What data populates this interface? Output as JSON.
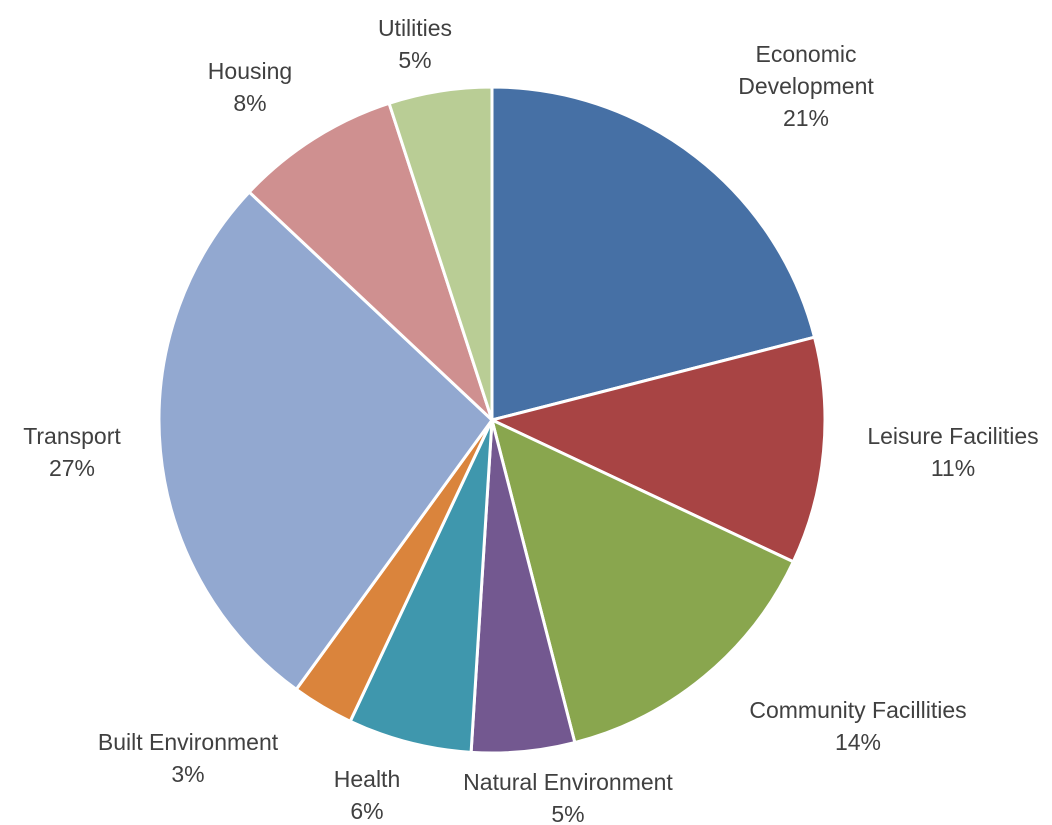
{
  "chart_data": {
    "type": "pie",
    "title": "",
    "legend": "none",
    "slices": [
      {
        "label": "Economic Development",
        "label_lines": [
          "Economic",
          "Development"
        ],
        "value": 21,
        "value_text": "21%",
        "color": "#4670A5"
      },
      {
        "label": "Leisure Facilities",
        "label_lines": [
          "Leisure Facilities"
        ],
        "value": 11,
        "value_text": "11%",
        "color": "#A84444"
      },
      {
        "label": "Community Facillities",
        "label_lines": [
          "Community Facillities"
        ],
        "value": 14,
        "value_text": "14%",
        "color": "#89A64E"
      },
      {
        "label": "Natural Environment",
        "label_lines": [
          "Natural Environment"
        ],
        "value": 5,
        "value_text": "5%",
        "color": "#735890"
      },
      {
        "label": "Health",
        "label_lines": [
          "Health"
        ],
        "value": 6,
        "value_text": "6%",
        "color": "#3F97AD"
      },
      {
        "label": "Built Environment",
        "label_lines": [
          "Built Environment"
        ],
        "value": 3,
        "value_text": "3%",
        "color": "#DA843C"
      },
      {
        "label": "Transport",
        "label_lines": [
          "Transport"
        ],
        "value": 27,
        "value_text": "27%",
        "color": "#92A8D0"
      },
      {
        "label": "Housing",
        "label_lines": [
          "Housing"
        ],
        "value": 8,
        "value_text": "8%",
        "color": "#CF9090"
      },
      {
        "label": "Utilities",
        "label_lines": [
          "Utilities"
        ],
        "value": 5,
        "value_text": "5%",
        "color": "#B9CD95"
      }
    ]
  }
}
